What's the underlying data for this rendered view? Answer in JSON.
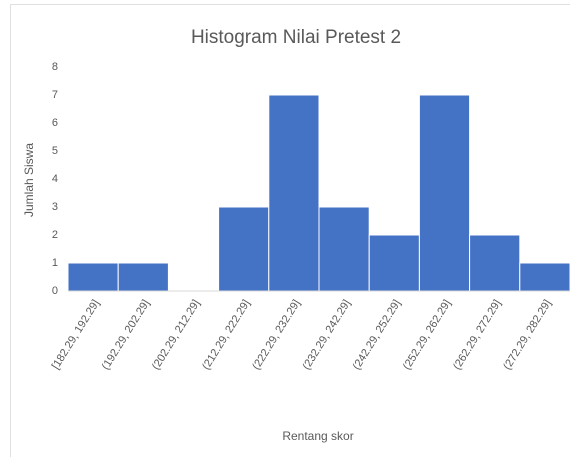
{
  "chart_data": {
    "type": "bar",
    "title": "Histogram Nilai Pretest 2",
    "x_label": "Rentang skor",
    "y_label": "Jumlah Siswa",
    "categories": [
      "[182.29, 192.29]",
      "(192.29, 202.29]",
      "(202.29, 212.29]",
      "(212.29, 222.29]",
      "(222.29, 232.29]",
      "(232.29, 242.29]",
      "(242.29, 252.29]",
      "(252.29, 262.29]",
      "(262.29, 272.29]",
      "(272.29, 282.29]"
    ],
    "values": [
      1,
      1,
      0,
      3,
      7,
      3,
      2,
      7,
      2,
      1
    ],
    "color": "#4472c4",
    "ylim": [
      0,
      8
    ],
    "yticks": [
      0,
      1,
      2,
      3,
      4,
      5,
      6,
      7,
      8
    ],
    "grid": false
  }
}
